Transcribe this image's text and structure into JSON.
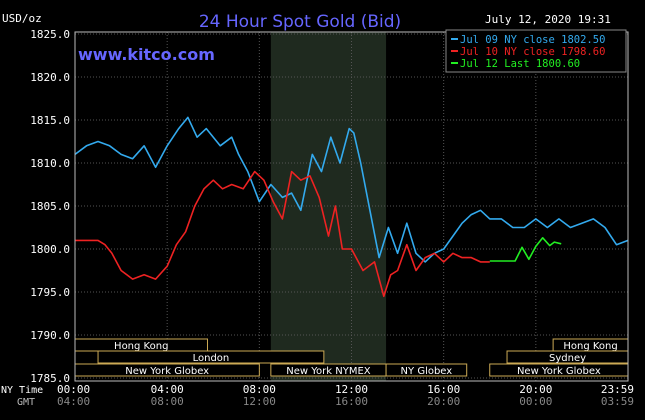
{
  "chart_data": {
    "type": "line",
    "title": "24 Hour Spot Gold (Bid)",
    "ylabel": "USD/oz",
    "timestamp": "July 12, 2020 19:31",
    "watermark": "www.kitco.com",
    "ylim": [
      1790.0,
      1825.0
    ],
    "ytick_labels": [
      "1825.0",
      "1820.0",
      "1815.0",
      "1810.0",
      "1805.0",
      "1800.0",
      "1795.0",
      "1790.0",
      "1785.0"
    ],
    "xlim": [
      0,
      24
    ],
    "x_row_label": "NY Time",
    "gmt_row_label": "GMT",
    "x_ticks": [
      0,
      4,
      8,
      12,
      16,
      20,
      23.98
    ],
    "ny_time_labels": [
      "00:00",
      "04:00",
      "08:00",
      "12:00",
      "16:00",
      "20:00",
      "23:59"
    ],
    "gmt_labels": [
      "04:00",
      "08:00",
      "12:00",
      "16:00",
      "20:00",
      "00:00",
      "03:59"
    ],
    "legend": [
      {
        "label": "Jul 09 NY close 1802.50",
        "color": "#33aaee"
      },
      {
        "label": "Jul 10 NY close 1798.60",
        "color": "#ee2222"
      },
      {
        "label": "Jul 12 Last 1800.60",
        "color": "#22ee22"
      }
    ],
    "series": [
      {
        "color": "#33aaee",
        "x": [
          0,
          0.5,
          1,
          1.5,
          2,
          2.5,
          3,
          3.5,
          4,
          4.5,
          4.9,
          5.3,
          5.7,
          6.3,
          6.8,
          7.1,
          7.5,
          8,
          8.5,
          9,
          9.4,
          9.8,
          10.3,
          10.7,
          11.1,
          11.5,
          11.9,
          12.1,
          12.4,
          12.8,
          13.2,
          13.6,
          14,
          14.4,
          14.8,
          15.2,
          15.6,
          16,
          16.4,
          16.8,
          17.2,
          17.6,
          18,
          18.5,
          19,
          19.5,
          20,
          20.5,
          21,
          21.5,
          22,
          22.5,
          23,
          23.5,
          24
        ],
        "y": [
          1811,
          1812,
          1812.5,
          1812,
          1811,
          1810.5,
          1812,
          1809.5,
          1812,
          1814,
          1815.3,
          1813,
          1814,
          1812,
          1813,
          1811,
          1809,
          1805.5,
          1807.5,
          1806,
          1806.5,
          1804.5,
          1811,
          1809,
          1813,
          1810,
          1814,
          1813.5,
          1810,
          1804.5,
          1799,
          1802.5,
          1799.5,
          1803,
          1799.5,
          1798.5,
          1799.5,
          1800,
          1801.5,
          1803,
          1804,
          1804.5,
          1803.5,
          1803.5,
          1802.5,
          1802.5,
          1803.5,
          1802.5,
          1803.5,
          1802.5,
          1803,
          1803.5,
          1802.5,
          1800.5,
          1801
        ]
      },
      {
        "color": "#ee2222",
        "x": [
          0,
          0.5,
          1,
          1.3,
          1.6,
          2,
          2.5,
          3,
          3.5,
          4,
          4.4,
          4.8,
          5.2,
          5.6,
          6,
          6.4,
          6.8,
          7.3,
          7.8,
          8.2,
          8.6,
          9,
          9.4,
          9.8,
          10.2,
          10.6,
          11,
          11.3,
          11.6,
          12,
          12.5,
          13,
          13.4,
          13.7,
          14,
          14.4,
          14.8,
          15.2,
          15.6,
          16,
          16.4,
          16.8,
          17.2,
          17.6,
          18
        ],
        "y": [
          1801,
          1801,
          1801,
          1800.5,
          1799.5,
          1797.5,
          1796.5,
          1797,
          1796.5,
          1798,
          1800.5,
          1802,
          1805,
          1807,
          1808,
          1807,
          1807.5,
          1807,
          1809,
          1808,
          1805.5,
          1803.5,
          1809,
          1808,
          1808.5,
          1806,
          1801.5,
          1805,
          1800,
          1800,
          1797.5,
          1798.5,
          1794.5,
          1797,
          1797.5,
          1800.5,
          1797.5,
          1799,
          1799.5,
          1798.5,
          1799.5,
          1799,
          1799,
          1798.5,
          1798.5
        ]
      },
      {
        "color": "#22ee22",
        "x": [
          18,
          18.6,
          19.1,
          19.4,
          19.7,
          20,
          20.3,
          20.6,
          20.8,
          21.1
        ],
        "y": [
          1798.6,
          1798.6,
          1798.6,
          1800.2,
          1798.8,
          1800.3,
          1801.3,
          1800.4,
          1800.8,
          1800.6
        ]
      }
    ],
    "highlight_band": [
      8.5,
      13.5
    ],
    "sessions": [
      {
        "label": "Hong Kong",
        "start": 0,
        "end": 5.75,
        "row": 0
      },
      {
        "label": "London",
        "start": 1.0,
        "end": 10.8,
        "row": 1
      },
      {
        "label": "New York Globex",
        "start": 0,
        "end": 8.0,
        "row": 2
      },
      {
        "label": "New York NYMEX",
        "start": 8.5,
        "end": 13.5,
        "row": 2
      },
      {
        "label": "NY Globex",
        "start": 13.5,
        "end": 17.0,
        "row": 2
      },
      {
        "label": "Hong Kong",
        "start": 20.75,
        "end": 24,
        "row": 0
      },
      {
        "label": "Sydney",
        "start": 18.75,
        "end": 24,
        "row": 1
      },
      {
        "label": "New York Globex",
        "start": 18.0,
        "end": 24,
        "row": 2
      }
    ]
  }
}
